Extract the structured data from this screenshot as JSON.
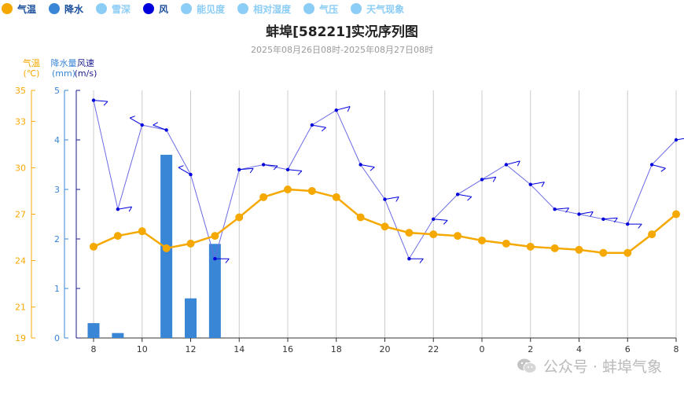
{
  "legend": [
    {
      "label": "气温",
      "color": "#f5a800",
      "text_color": "#1a4f9c"
    },
    {
      "label": "降水",
      "color": "#3a86d6",
      "text_color": "#1a4f9c"
    },
    {
      "label": "雪深",
      "color": "#8ccdf5",
      "text_color": "#8ccdf5"
    },
    {
      "label": "风",
      "color": "#0000dd",
      "text_color": "#1a4f9c"
    },
    {
      "label": "能见度",
      "color": "#8ccdf5",
      "text_color": "#8ccdf5"
    },
    {
      "label": "相对湿度",
      "color": "#8ccdf5",
      "text_color": "#8ccdf5"
    },
    {
      "label": "气压",
      "color": "#8ccdf5",
      "text_color": "#8ccdf5"
    },
    {
      "label": "天气现象",
      "color": "#8ccdf5",
      "text_color": "#8ccdf5"
    }
  ],
  "title": "蚌埠[58221]实况序列图",
  "subtitle": "2025年08月26日08时-2025年08月27日08时",
  "axis_labels": {
    "temp_name": "气温",
    "temp_unit": "(℃)",
    "precip_name": "降水量",
    "precip_unit": "(mm)",
    "wind_name": "风速",
    "wind_unit": "(m/s)"
  },
  "watermark": "公众号 · 蚌埠气象",
  "colors": {
    "temp": "#f5a800",
    "precip": "#3a86d6",
    "wind": "#0000dd",
    "wind_line": "#6a6ae6",
    "grid": "#cccccc",
    "temp_axis": "#f5a800",
    "precip_axis": "#3a86d6",
    "wind_axis": "#1a1a8c"
  },
  "chart_data": {
    "type": "line",
    "x": [
      "8",
      "9",
      "10",
      "11",
      "12",
      "13",
      "14",
      "15",
      "16",
      "17",
      "18",
      "19",
      "20",
      "21",
      "22",
      "23",
      "0",
      "1",
      "2",
      "3",
      "4",
      "5",
      "6",
      "7",
      "8"
    ],
    "x_tick_labels": [
      "8",
      "10",
      "12",
      "14",
      "16",
      "18",
      "20",
      "22",
      "0",
      "2",
      "4",
      "6",
      "8"
    ],
    "x_tick_every": 2,
    "grid": true,
    "series": [
      {
        "name": "气温",
        "axis": "temp",
        "type": "line",
        "values": [
          24.9,
          25.6,
          25.9,
          24.8,
          25.1,
          25.6,
          26.8,
          28.1,
          28.6,
          28.5,
          28.1,
          26.8,
          26.2,
          25.8,
          25.7,
          25.6,
          25.3,
          25.1,
          24.9,
          24.8,
          24.7,
          24.5,
          24.5,
          25.7,
          27.0
        ]
      },
      {
        "name": "降水",
        "axis": "precip",
        "type": "bar",
        "values": [
          0.3,
          0.1,
          0,
          3.7,
          0.8,
          1.9,
          0,
          0,
          0,
          0,
          0,
          0,
          0,
          0,
          0,
          0,
          0,
          0,
          0,
          0,
          0,
          0,
          0,
          0,
          0
        ]
      },
      {
        "name": "风",
        "axis": "wind",
        "type": "line",
        "values": [
          4.8,
          2.6,
          4.3,
          4.2,
          3.3,
          1.6,
          3.4,
          3.5,
          3.4,
          4.3,
          4.6,
          3.5,
          2.8,
          1.6,
          2.4,
          2.9,
          3.2,
          3.5,
          3.1,
          2.6,
          2.5,
          2.4,
          2.3,
          3.5,
          4.0
        ]
      }
    ],
    "axes": {
      "temp": {
        "label": "气温(℃)",
        "ylim": [
          19,
          35
        ],
        "ticks": [
          19,
          21,
          24,
          27,
          30,
          33,
          35
        ]
      },
      "precip": {
        "label": "降水量(mm)",
        "ylim": [
          0,
          5
        ],
        "ticks": [
          0,
          1,
          2,
          3,
          4,
          5
        ]
      },
      "wind": {
        "label": "风速(m/s)",
        "ylim": [
          0,
          5
        ],
        "ticks": [
          0,
          1,
          2,
          3,
          4,
          5
        ]
      }
    }
  }
}
